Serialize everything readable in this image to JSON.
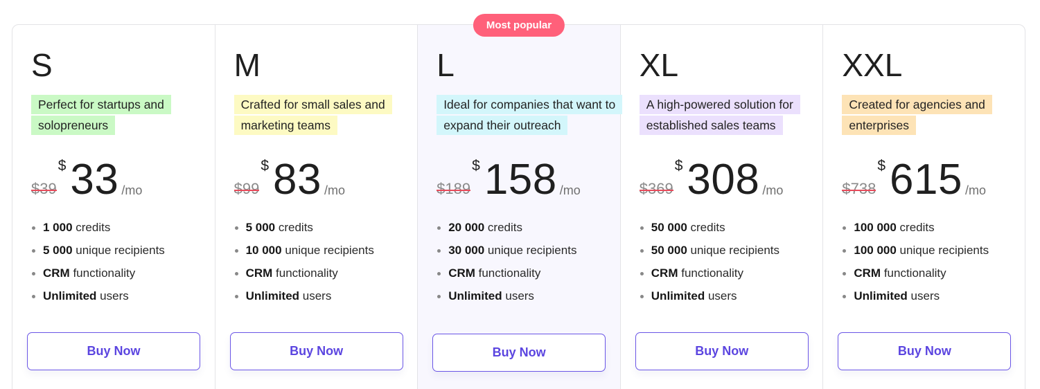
{
  "badge": {
    "label": "Most popular",
    "color": "#ff607a"
  },
  "accent_color": "#5b45e0",
  "plans": [
    {
      "name": "S",
      "description": "Perfect for startups and solopreneurs",
      "description_bg": "#caf9c5",
      "old_price": "$39",
      "currency": "$",
      "price": "33",
      "period": "/mo",
      "features": [
        {
          "bold": "1 000",
          "text": " credits"
        },
        {
          "bold": "5 000",
          "text": " unique recipients"
        },
        {
          "bold": "CRM",
          "text": " functionality"
        },
        {
          "bold": "Unlimited",
          "text": " users"
        }
      ],
      "button_label": "Buy Now",
      "popular": false
    },
    {
      "name": "M",
      "description": "Crafted for small sales and marketing teams",
      "description_bg": "#fdfac3",
      "old_price": "$99",
      "currency": "$",
      "price": "83",
      "period": "/mo",
      "features": [
        {
          "bold": "5 000",
          "text": " credits"
        },
        {
          "bold": "10 000",
          "text": " unique recipients"
        },
        {
          "bold": "CRM",
          "text": " functionality"
        },
        {
          "bold": "Unlimited",
          "text": " users"
        }
      ],
      "button_label": "Buy Now",
      "popular": false
    },
    {
      "name": "L",
      "description": "Ideal for companies that want to expand their outreach",
      "description_bg": "#d3f6fb",
      "old_price": "$189",
      "currency": "$",
      "price": "158",
      "period": "/mo",
      "features": [
        {
          "bold": "20 000",
          "text": " credits"
        },
        {
          "bold": "30 000",
          "text": " unique recipients"
        },
        {
          "bold": "CRM",
          "text": " functionality"
        },
        {
          "bold": "Unlimited",
          "text": " users"
        }
      ],
      "button_label": "Buy Now",
      "popular": true
    },
    {
      "name": "XL",
      "description": "A high-powered solution for established sales teams",
      "description_bg": "#ebe0fd",
      "old_price": "$369",
      "currency": "$",
      "price": "308",
      "period": "/mo",
      "features": [
        {
          "bold": "50 000",
          "text": " credits"
        },
        {
          "bold": "50 000",
          "text": " unique recipients"
        },
        {
          "bold": "CRM",
          "text": " functionality"
        },
        {
          "bold": "Unlimited",
          "text": " users"
        }
      ],
      "button_label": "Buy Now",
      "popular": false
    },
    {
      "name": "XXL",
      "description": "Created for agencies and enterprises",
      "description_bg": "#fde3b6",
      "old_price": "$738",
      "currency": "$",
      "price": "615",
      "period": "/mo",
      "features": [
        {
          "bold": "100 000",
          "text": " credits"
        },
        {
          "bold": "100 000",
          "text": " unique recipients"
        },
        {
          "bold": "CRM",
          "text": " functionality"
        },
        {
          "bold": "Unlimited",
          "text": " users"
        }
      ],
      "button_label": "Buy Now",
      "popular": false
    }
  ]
}
